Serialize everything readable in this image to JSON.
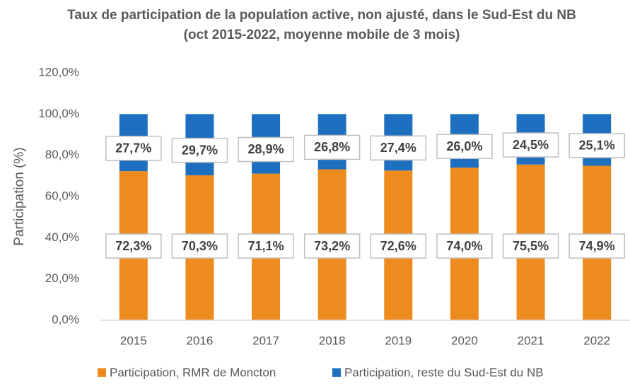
{
  "chart_data": {
    "type": "stacked_bar",
    "title": "Taux de participation de la population active, non ajusté, dans le Sud-Est du NB (oct 2015-2022, moyenne mobile de 3 mois)",
    "y_label": "Participation (%)",
    "categories": [
      "2015",
      "2016",
      "2017",
      "2018",
      "2019",
      "2020",
      "2021",
      "2022"
    ],
    "series": [
      {
        "name": "Participation, RMR de Moncton",
        "color": "#ed8b1e",
        "values": [
          72.3,
          70.3,
          71.1,
          73.2,
          72.6,
          74.0,
          75.5,
          74.9
        ],
        "value_labels": [
          "72,3%",
          "70,3%",
          "71,1%",
          "73,2%",
          "72,6%",
          "74,0%",
          "75,5%",
          "74,9%"
        ]
      },
      {
        "name": "Participation, reste du Sud-Est du NB",
        "color": "#1f6fc0",
        "values": [
          27.7,
          29.7,
          28.9,
          26.8,
          27.4,
          26.0,
          24.5,
          25.1
        ],
        "value_labels": [
          "27,7%",
          "29,7%",
          "28,9%",
          "26,8%",
          "27,4%",
          "26,0%",
          "24,5%",
          "25,1%"
        ]
      }
    ],
    "ylim": [
      0,
      120
    ],
    "yticks": [
      {
        "value": 0,
        "label": "0,0%"
      },
      {
        "value": 20,
        "label": "20,0%"
      },
      {
        "value": 40,
        "label": "40,0%"
      },
      {
        "value": 60,
        "label": "60,0%"
      },
      {
        "value": 80,
        "label": "80,0%"
      },
      {
        "value": 100,
        "label": "100,0%"
      },
      {
        "value": 120,
        "label": "120,0%"
      }
    ],
    "grid": false,
    "legend": "bottom"
  }
}
